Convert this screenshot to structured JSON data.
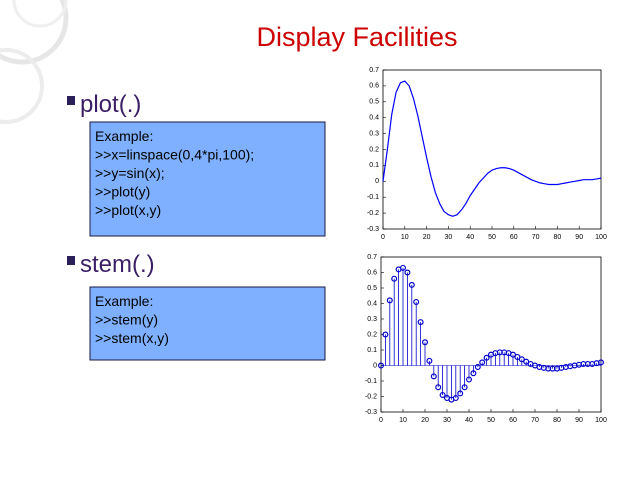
{
  "title": "Display Facilities",
  "sections": [
    {
      "bullet": "plot(.)",
      "example": [
        "Example:",
        ">>x=linspace(0,4*pi,100);",
        ">>y=sin(x);",
        ">>plot(y)",
        ">>plot(x,y)"
      ]
    },
    {
      "bullet": "stem(.)",
      "example": [
        "Example:",
        ">>stem(y)",
        ">>stem(x,y)"
      ]
    }
  ],
  "chart_data": [
    {
      "type": "line",
      "color": "#0000ff",
      "x": [
        0,
        2,
        4,
        6,
        8,
        10,
        12,
        14,
        16,
        18,
        20,
        22,
        24,
        26,
        28,
        30,
        32,
        34,
        36,
        38,
        40,
        42,
        44,
        46,
        48,
        50,
        52,
        54,
        56,
        58,
        60,
        62,
        64,
        66,
        68,
        70,
        72,
        74,
        76,
        78,
        80,
        82,
        84,
        86,
        88,
        90,
        92,
        94,
        96,
        98,
        100
      ],
      "values": [
        0,
        0.2,
        0.42,
        0.56,
        0.62,
        0.63,
        0.6,
        0.52,
        0.41,
        0.28,
        0.15,
        0.03,
        -0.07,
        -0.14,
        -0.19,
        -0.21,
        -0.22,
        -0.21,
        -0.18,
        -0.14,
        -0.09,
        -0.05,
        -0.01,
        0.02,
        0.05,
        0.07,
        0.08,
        0.085,
        0.085,
        0.08,
        0.07,
        0.055,
        0.04,
        0.025,
        0.01,
        0,
        -0.01,
        -0.015,
        -0.02,
        -0.02,
        -0.02,
        -0.015,
        -0.01,
        -0.005,
        0,
        0.005,
        0.01,
        0.01,
        0.01,
        0.015,
        0.02
      ],
      "xlim": [
        0,
        100
      ],
      "xticks": [
        0,
        10,
        20,
        30,
        40,
        50,
        60,
        70,
        80,
        90,
        100
      ],
      "ylim": [
        -0.3,
        0.7
      ],
      "yticks": [
        -0.3,
        -0.2,
        -0.1,
        0,
        0.1,
        0.2,
        0.3,
        0.4,
        0.5,
        0.6,
        0.7
      ]
    },
    {
      "type": "stem",
      "color": "#0000cc",
      "x": [
        0,
        2,
        4,
        6,
        8,
        10,
        12,
        14,
        16,
        18,
        20,
        22,
        24,
        26,
        28,
        30,
        32,
        34,
        36,
        38,
        40,
        42,
        44,
        46,
        48,
        50,
        52,
        54,
        56,
        58,
        60,
        62,
        64,
        66,
        68,
        70,
        72,
        74,
        76,
        78,
        80,
        82,
        84,
        86,
        88,
        90,
        92,
        94,
        96,
        98,
        100
      ],
      "values": [
        0,
        0.2,
        0.42,
        0.56,
        0.62,
        0.63,
        0.6,
        0.52,
        0.41,
        0.28,
        0.15,
        0.03,
        -0.07,
        -0.14,
        -0.19,
        -0.21,
        -0.22,
        -0.21,
        -0.18,
        -0.14,
        -0.09,
        -0.05,
        -0.01,
        0.02,
        0.05,
        0.07,
        0.08,
        0.085,
        0.085,
        0.08,
        0.07,
        0.055,
        0.04,
        0.025,
        0.01,
        0,
        -0.01,
        -0.015,
        -0.02,
        -0.02,
        -0.02,
        -0.015,
        -0.01,
        -0.005,
        0,
        0.005,
        0.01,
        0.01,
        0.01,
        0.015,
        0.02
      ],
      "xlim": [
        0,
        100
      ],
      "xticks": [
        0,
        10,
        20,
        30,
        40,
        50,
        60,
        70,
        80,
        90,
        100
      ],
      "ylim": [
        -0.3,
        0.7
      ],
      "yticks": [
        -0.3,
        -0.2,
        -0.1,
        0,
        0.1,
        0.2,
        0.3,
        0.4,
        0.5,
        0.6,
        0.7
      ]
    }
  ]
}
